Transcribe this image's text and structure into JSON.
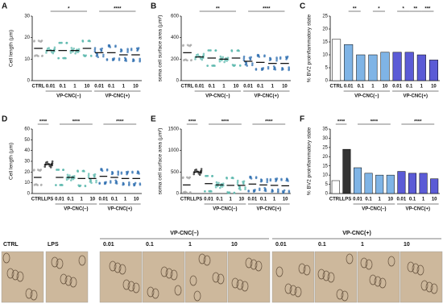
{
  "chart_data": [
    {
      "type": "dot",
      "panel": "A",
      "ylabel": "Cell length (µm)",
      "categories": [
        "CTRL",
        "0.01",
        "0.1",
        "1",
        "10",
        "0.01",
        "0.1",
        "1",
        "10"
      ],
      "values": [
        15,
        14,
        14,
        14,
        15,
        13,
        13,
        12,
        12
      ],
      "colors": [
        "#a8a8a8",
        "#5cb8ad",
        "#5cb8ad",
        "#5cb8ad",
        "#5cb8ad",
        "#2f6fb0",
        "#2f6fb0",
        "#2f6fb0",
        "#2f6fb0"
      ],
      "ylim": [
        0,
        30
      ],
      "yticks": [
        0,
        10,
        20,
        30
      ],
      "groups": [
        "VP-CNC(–)",
        "VP-CNC(+)"
      ],
      "annotations": [
        "*",
        "****"
      ]
    },
    {
      "type": "dot",
      "panel": "B",
      "ylabel": "soma cell surface area (µm²)",
      "categories": [
        "CTRL",
        "0.01",
        "0.1",
        "1",
        "10",
        "0.01",
        "0.1",
        "1",
        "10"
      ],
      "values": [
        260,
        220,
        210,
        200,
        210,
        180,
        170,
        160,
        160
      ],
      "colors": [
        "#a8a8a8",
        "#5cb8ad",
        "#5cb8ad",
        "#5cb8ad",
        "#5cb8ad",
        "#2f6fb0",
        "#2f6fb0",
        "#2f6fb0",
        "#2f6fb0"
      ],
      "ylim": [
        0,
        600
      ],
      "yticks": [
        0,
        200,
        400,
        600
      ],
      "groups": [
        "VP-CNC(–)",
        "VP-CNC(+)"
      ],
      "annotations": [
        "**",
        "****"
      ]
    },
    {
      "type": "bar",
      "panel": "C",
      "ylabel": "% BV2 proinflammatory state",
      "categories": [
        "CTRL",
        "0.01",
        "0.1",
        "1",
        "10",
        "0.01",
        "0.1",
        "1",
        "10"
      ],
      "values": [
        16,
        14,
        10,
        10,
        11,
        11,
        11,
        10,
        8
      ],
      "colors": [
        "#ffffff",
        "#7fb4e6",
        "#7fb4e6",
        "#7fb4e6",
        "#7fb4e6",
        "#5b5bd6",
        "#5b5bd6",
        "#5b5bd6",
        "#5b5bd6"
      ],
      "ylim": [
        0,
        25
      ],
      "yticks": [
        0,
        5,
        10,
        15,
        20,
        25
      ],
      "groups": [
        "VP-CNC(–)",
        "VP-CNC(+)"
      ],
      "annotations": [
        "**",
        "*",
        "*",
        "**",
        "***"
      ]
    },
    {
      "type": "dot",
      "panel": "D",
      "ylabel": "Cell length (µm)",
      "categories": [
        "CTRL",
        "LPS",
        "0.01",
        "0.1",
        "1",
        "10",
        "0.01",
        "0.1",
        "1",
        "10"
      ],
      "values": [
        15,
        27,
        15,
        15,
        14,
        14,
        16,
        15,
        14,
        14
      ],
      "colors": [
        "#a8a8a8",
        "#222222",
        "#5cb8ad",
        "#5cb8ad",
        "#5cb8ad",
        "#5cb8ad",
        "#2f6fb0",
        "#2f6fb0",
        "#2f6fb0",
        "#2f6fb0"
      ],
      "ylim": [
        0,
        60
      ],
      "yticks": [
        0,
        10,
        20,
        30,
        40,
        50,
        60
      ],
      "groups": [
        "VP-CNC(–)",
        "VP-CNC(+)"
      ],
      "annotations": [
        "****",
        "****",
        "****"
      ]
    },
    {
      "type": "dot",
      "panel": "E",
      "ylabel": "soma cell surface area (µm²)",
      "categories": [
        "CTRL",
        "LPS",
        "0.01",
        "0.1",
        "1",
        "10",
        "0.01",
        "0.1",
        "1",
        "10"
      ],
      "values": [
        200,
        500,
        230,
        200,
        190,
        190,
        220,
        200,
        190,
        180
      ],
      "colors": [
        "#a8a8a8",
        "#222222",
        "#5cb8ad",
        "#5cb8ad",
        "#5cb8ad",
        "#5cb8ad",
        "#2f6fb0",
        "#2f6fb0",
        "#2f6fb0",
        "#2f6fb0"
      ],
      "ylim": [
        0,
        1500
      ],
      "yticks": [
        0,
        500,
        1000,
        1500
      ],
      "groups": [
        "VP-CNC(–)",
        "VP-CNC(+)"
      ],
      "annotations": [
        "****",
        "****",
        "****"
      ]
    },
    {
      "type": "bar",
      "panel": "F",
      "ylabel": "% BV2 proinflammatory state",
      "categories": [
        "CTRL",
        "LPS",
        "0.01",
        "0.1",
        "1",
        "10",
        "0.01",
        "0.1",
        "1",
        "10"
      ],
      "values": [
        7,
        24,
        14,
        11,
        10,
        10,
        12,
        11,
        11,
        8
      ],
      "colors": [
        "#ffffff",
        "#333333",
        "#7fb4e6",
        "#7fb4e6",
        "#7fb4e6",
        "#7fb4e6",
        "#5b5bd6",
        "#5b5bd6",
        "#5b5bd6",
        "#5b5bd6"
      ],
      "ylim": [
        0,
        35
      ],
      "yticks": [
        0,
        5,
        10,
        15,
        20,
        25,
        30,
        35
      ],
      "groups": [
        "VP-CNC(–)",
        "VP-CNC(+)"
      ],
      "annotations": [
        "****",
        "****",
        "****"
      ]
    }
  ],
  "micrographs": {
    "labels": [
      "CTRL",
      "LPS"
    ],
    "groups": [
      {
        "label": "VP-CNC(–)",
        "concentrations": [
          "0.01",
          "0.1",
          "1",
          "10"
        ]
      },
      {
        "label": "VP-CNC(+)",
        "concentrations": [
          "0.01",
          "0.1",
          "1",
          "10"
        ]
      }
    ]
  }
}
